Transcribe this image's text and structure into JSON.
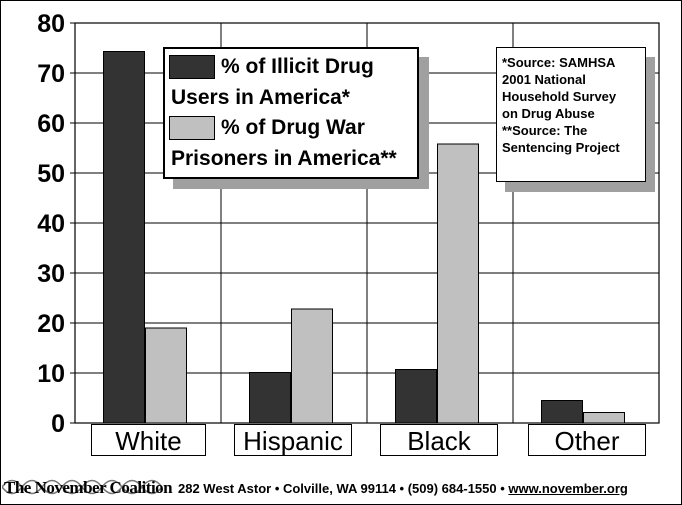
{
  "chart_data": {
    "type": "bar",
    "categories": [
      "White",
      "Hispanic",
      "Black",
      "Other"
    ],
    "series": [
      {
        "name": "% of Illicit Drug Users in America*",
        "values": [
          74.3,
          10.1,
          10.7,
          4.5
        ],
        "color": "#333333"
      },
      {
        "name": "% of Drug War Prisoners in America**",
        "values": [
          19.0,
          22.8,
          55.8,
          2.1
        ],
        "color": "#c0c0c0"
      }
    ],
    "ylim": [
      0,
      80
    ],
    "yticks": [
      "0",
      "10",
      "20",
      "30",
      "40",
      "50",
      "60",
      "70",
      "80"
    ],
    "grid": true,
    "legend_placement": "top-center"
  },
  "legend": {
    "series1_line1": "% of Illicit Drug",
    "series1_line2": "Users in America*",
    "series2_line1": "% of Drug War",
    "series2_line2": "Prisoners in America**"
  },
  "source_note": {
    "line1": "*Source: SAMHSA",
    "line2": "2001 National",
    "line3": "Household Survey",
    "line4": "on Drug Abuse",
    "line5": "**Source: The",
    "line6": "Sentencing Project"
  },
  "footer": {
    "org": "The November Coalition",
    "address": "282 West Astor • Colville, WA 99114 • (509) 684-1550 • ",
    "website": "www.november.org"
  }
}
